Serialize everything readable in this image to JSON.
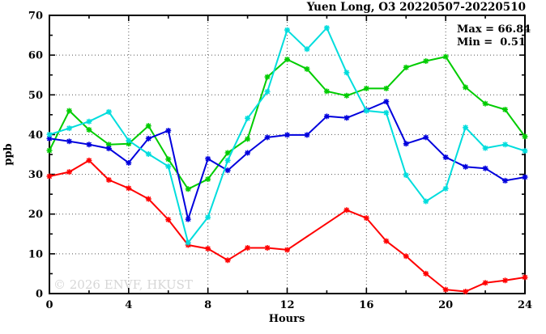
{
  "title": "Yuen Long, O3 20220507-20220510",
  "annotation": {
    "max_label": "Max = 66.84",
    "min_label": "Min =  0.51"
  },
  "watermark": "© 2026 ENVF, HKUST",
  "chart_data": {
    "type": "line",
    "title": "Yuen Long, O3 20220507-20220510",
    "xlabel": "Hours",
    "ylabel": "ppb",
    "xlim": [
      0,
      24
    ],
    "ylim": [
      0,
      70
    ],
    "x_major_ticks": [
      0,
      4,
      8,
      12,
      16,
      20,
      24
    ],
    "x_minor_ticks": [
      2,
      6,
      10,
      14,
      18,
      22
    ],
    "y_major_ticks": [
      0,
      10,
      20,
      30,
      40,
      50,
      60,
      70
    ],
    "y_minor_ticks": [
      5,
      15,
      25,
      35,
      45,
      55,
      65
    ],
    "x_gridlines": [
      4,
      8,
      12,
      16,
      20
    ],
    "y_gridlines": [
      10,
      20,
      30,
      40,
      50,
      60
    ],
    "grid": "dotted",
    "legend": "none",
    "marker": "asterisk",
    "max": 66.84,
    "min": 0.51,
    "x": [
      0,
      1,
      2,
      3,
      4,
      5,
      6,
      7,
      8,
      9,
      10,
      11,
      12,
      13,
      14,
      15,
      16,
      17,
      18,
      19,
      20,
      21,
      22,
      23,
      24
    ],
    "series": [
      {
        "name": "series-red",
        "color": "#ff0000",
        "values": [
          29.5,
          30.6,
          33.5,
          28.6,
          26.5,
          23.8,
          18.6,
          12.2,
          11.3,
          8.4,
          11.5,
          11.5,
          11.0,
          null,
          null,
          21.0,
          19.0,
          13.2,
          9.4,
          5.0,
          1.0,
          0.51,
          2.7,
          3.3,
          4.1
        ]
      },
      {
        "name": "series-green",
        "color": "#00cc00",
        "values": [
          36.0,
          46.0,
          41.2,
          37.5,
          37.7,
          42.2,
          33.8,
          26.3,
          28.8,
          35.4,
          38.9,
          54.5,
          58.9,
          56.5,
          50.9,
          49.8,
          51.6,
          51.6,
          56.9,
          58.5,
          59.6,
          51.9,
          47.8,
          46.3,
          39.5
        ]
      },
      {
        "name": "series-blue",
        "color": "#0000dd",
        "values": [
          39.0,
          38.3,
          37.5,
          36.5,
          32.9,
          39.0,
          41.0,
          18.7,
          33.9,
          31.0,
          35.4,
          39.3,
          39.9,
          39.9,
          44.6,
          44.2,
          46.2,
          48.3,
          37.7,
          39.3,
          34.3,
          31.9,
          31.5,
          28.4,
          29.3
        ]
      },
      {
        "name": "series-cyan",
        "color": "#00dddd",
        "values": [
          40.0,
          41.6,
          43.3,
          45.7,
          38.5,
          35.1,
          32.0,
          12.8,
          19.2,
          33.5,
          44.1,
          50.8,
          66.3,
          61.5,
          66.84,
          55.6,
          46.0,
          45.5,
          29.8,
          23.2,
          26.4,
          41.8,
          36.6,
          37.5,
          35.9
        ]
      }
    ]
  }
}
